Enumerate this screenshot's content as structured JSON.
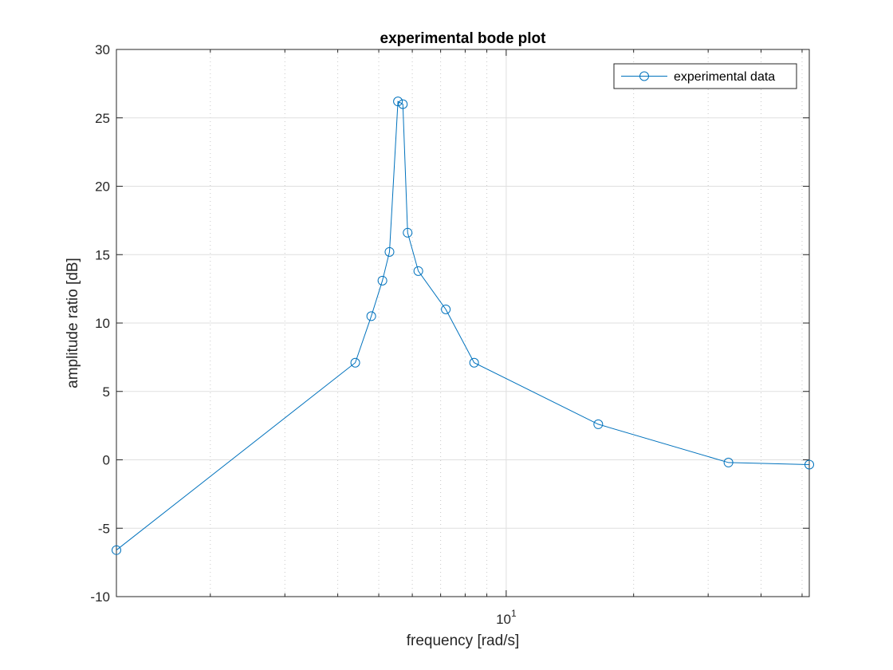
{
  "chart_data": {
    "type": "line",
    "title": "experimental bode plot",
    "xlabel": "frequency [rad/s]",
    "ylabel": "amplitude ratio [dB]",
    "xscale": "log",
    "xlim": [
      1.2,
      52
    ],
    "ylim": [
      -10,
      30
    ],
    "yticks": [
      -10,
      -5,
      0,
      5,
      10,
      15,
      20,
      25,
      30
    ],
    "xtick_major": [
      {
        "value": 10,
        "base": "10",
        "exponent": "1"
      }
    ],
    "grid": true,
    "legend": {
      "position": "top-right"
    },
    "series": [
      {
        "name": "experimental data",
        "color": "#0072BD",
        "marker": "circle",
        "x": [
          1.2,
          4.4,
          4.8,
          5.1,
          5.3,
          5.55,
          5.7,
          5.85,
          6.2,
          7.2,
          8.4,
          16.5,
          33.5,
          52
        ],
        "y": [
          -6.6,
          7.1,
          10.5,
          13.1,
          15.2,
          26.2,
          26.0,
          16.6,
          13.8,
          11.0,
          7.1,
          2.6,
          -0.2,
          -0.35
        ]
      }
    ]
  }
}
